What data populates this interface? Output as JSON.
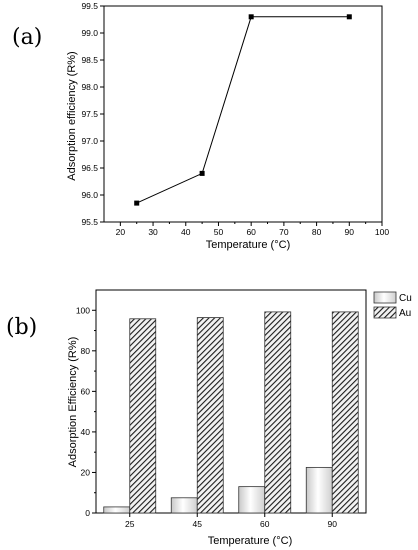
{
  "chart_data": [
    {
      "type": "line",
      "panel_label": "(a)",
      "xlabel": "Temperature (°C)",
      "ylabel": "Adsorption efficiency (R%)",
      "xlim": [
        15,
        100
      ],
      "ylim": [
        95.5,
        99.5
      ],
      "x_ticks": [
        20,
        30,
        40,
        50,
        60,
        70,
        80,
        90,
        100
      ],
      "y_ticks": [
        95.5,
        96.0,
        96.5,
        97.0,
        97.5,
        98.0,
        98.5,
        99.0,
        99.5
      ],
      "tick_decimals": 1,
      "series": [
        {
          "x": [
            25,
            45,
            60,
            90
          ],
          "y": [
            95.85,
            96.4,
            99.3,
            99.3
          ]
        }
      ],
      "marker": "square",
      "grid": false
    },
    {
      "type": "bar",
      "panel_label": "(b)",
      "xlabel": "Temperature (°C)",
      "ylabel": "Adsorption Efficiency (R%)",
      "categories": [
        "25",
        "45",
        "60",
        "90"
      ],
      "ylim": [
        0,
        110
      ],
      "y_ticks": [
        0,
        20,
        40,
        60,
        80,
        100
      ],
      "series": [
        {
          "name": "Cu",
          "values": [
            3,
            7.5,
            13,
            22.5
          ],
          "pattern": "white-gradient"
        },
        {
          "name": "Au",
          "values": [
            95.8,
            96.4,
            99.2,
            99.2
          ],
          "pattern": "diagonal-hatch"
        }
      ],
      "legend_position": "top-right-outside",
      "grid": false
    }
  ],
  "colors": {
    "axis": "#000000",
    "bar_stroke": "#333333",
    "hatch": "#1a1a1a",
    "hatch_bg": "#f2f2f2"
  }
}
